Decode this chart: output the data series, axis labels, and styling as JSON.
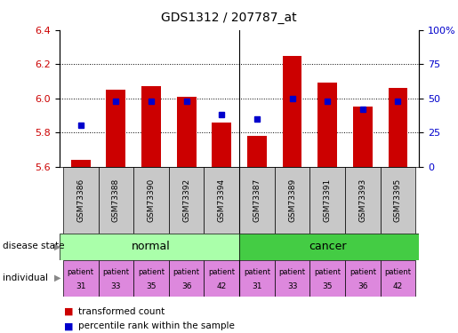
{
  "title": "GDS1312 / 207787_at",
  "samples": [
    "GSM73386",
    "GSM73388",
    "GSM73390",
    "GSM73392",
    "GSM73394",
    "GSM73387",
    "GSM73389",
    "GSM73391",
    "GSM73393",
    "GSM73395"
  ],
  "transformed_counts": [
    5.64,
    6.05,
    6.07,
    6.01,
    5.86,
    5.78,
    6.25,
    6.09,
    5.95,
    6.06
  ],
  "percentile_ranks": [
    30,
    48,
    48,
    48,
    38,
    35,
    50,
    48,
    42,
    48
  ],
  "y_min": 5.6,
  "y_max": 6.4,
  "y_left_ticks": [
    5.6,
    5.8,
    6.0,
    6.2,
    6.4
  ],
  "y_right_ticks": [
    0,
    25,
    50,
    75,
    100
  ],
  "bar_color": "#CC0000",
  "dot_color": "#0000CC",
  "label_color_left": "#CC0000",
  "label_color_right": "#0000CC",
  "normal_bg": "#AAFFAA",
  "cancer_bg": "#44CC44",
  "individual_bg": "#DD88DD",
  "sample_bg": "#C8C8C8",
  "legend_red": "transformed count",
  "legend_blue": "percentile rank within the sample",
  "disease_label": "disease state",
  "individual_label": "individual",
  "individuals_top": [
    "patient",
    "patient",
    "patient",
    "patient",
    "patient",
    "patient",
    "patient",
    "patient",
    "patient",
    "patient"
  ],
  "individuals_bot": [
    "31",
    "33",
    "35",
    "36",
    "42",
    "31",
    "33",
    "35",
    "36",
    "42"
  ]
}
